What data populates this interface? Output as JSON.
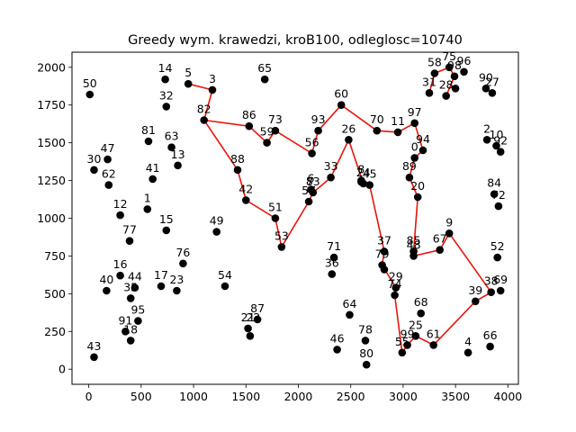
{
  "chart_data": {
    "type": "scatter",
    "title": "Greedy wym. krawedzi, kroB100, odleglosc=10740",
    "xlabel": "",
    "ylabel": "",
    "xlim": [
      -160,
      4100
    ],
    "ylim": [
      -100,
      2100
    ],
    "xticks": [
      0,
      500,
      1000,
      1500,
      2000,
      2500,
      3000,
      3500,
      4000
    ],
    "yticks": [
      0,
      250,
      500,
      750,
      1000,
      1250,
      1500,
      1750,
      2000
    ],
    "grid": false,
    "colors": {
      "points": "#000000",
      "route": "#e8140c"
    },
    "points": [
      {
        "id": "0",
        "x": 3110,
        "y": 1400
      },
      {
        "id": "1",
        "x": 560,
        "y": 1060
      },
      {
        "id": "2",
        "x": 3800,
        "y": 1520
      },
      {
        "id": "3",
        "x": 1180,
        "y": 1850
      },
      {
        "id": "4",
        "x": 3620,
        "y": 110
      },
      {
        "id": "5",
        "x": 950,
        "y": 1890
      },
      {
        "id": "6",
        "x": 2120,
        "y": 1190
      },
      {
        "id": "8",
        "x": 2600,
        "y": 1250
      },
      {
        "id": "9",
        "x": 3440,
        "y": 900
      },
      {
        "id": "10",
        "x": 3890,
        "y": 1480
      },
      {
        "id": "11",
        "x": 2950,
        "y": 1570
      },
      {
        "id": "12",
        "x": 300,
        "y": 1020
      },
      {
        "id": "13",
        "x": 850,
        "y": 1350
      },
      {
        "id": "14",
        "x": 730,
        "y": 1920
      },
      {
        "id": "15",
        "x": 740,
        "y": 920
      },
      {
        "id": "16",
        "x": 300,
        "y": 620
      },
      {
        "id": "17",
        "x": 690,
        "y": 550
      },
      {
        "id": "18",
        "x": 400,
        "y": 190
      },
      {
        "id": "20",
        "x": 3140,
        "y": 1140
      },
      {
        "id": "21",
        "x": 1520,
        "y": 270
      },
      {
        "id": "23",
        "x": 840,
        "y": 520
      },
      {
        "id": "24",
        "x": 2620,
        "y": 1230
      },
      {
        "id": "25",
        "x": 3120,
        "y": 220
      },
      {
        "id": "26",
        "x": 2480,
        "y": 1520
      },
      {
        "id": "27",
        "x": 3850,
        "y": 1830
      },
      {
        "id": "28",
        "x": 3410,
        "y": 1810
      },
      {
        "id": "29",
        "x": 2930,
        "y": 540
      },
      {
        "id": "30",
        "x": 50,
        "y": 1320
      },
      {
        "id": "31",
        "x": 3250,
        "y": 1830
      },
      {
        "id": "32",
        "x": 740,
        "y": 1740
      },
      {
        "id": "33",
        "x": 2310,
        "y": 1270
      },
      {
        "id": "35",
        "x": 400,
        "y": 470
      },
      {
        "id": "36",
        "x": 2320,
        "y": 630
      },
      {
        "id": "37",
        "x": 2820,
        "y": 780
      },
      {
        "id": "38",
        "x": 3840,
        "y": 510
      },
      {
        "id": "39",
        "x": 3690,
        "y": 450
      },
      {
        "id": "40",
        "x": 170,
        "y": 520
      },
      {
        "id": "41",
        "x": 610,
        "y": 1260
      },
      {
        "id": "42",
        "x": 1500,
        "y": 1120
      },
      {
        "id": "43",
        "x": 50,
        "y": 80
      },
      {
        "id": "44",
        "x": 440,
        "y": 540
      },
      {
        "id": "45",
        "x": 2680,
        "y": 1220
      },
      {
        "id": "46",
        "x": 2370,
        "y": 130
      },
      {
        "id": "47",
        "x": 180,
        "y": 1390
      },
      {
        "id": "48",
        "x": 3100,
        "y": 750
      },
      {
        "id": "49",
        "x": 1220,
        "y": 910
      },
      {
        "id": "50",
        "x": 10,
        "y": 1820
      },
      {
        "id": "51",
        "x": 1780,
        "y": 1000
      },
      {
        "id": "52",
        "x": 3900,
        "y": 740
      },
      {
        "id": "53",
        "x": 1840,
        "y": 810
      },
      {
        "id": "54",
        "x": 1300,
        "y": 550
      },
      {
        "id": "55",
        "x": 2990,
        "y": 110
      },
      {
        "id": "56",
        "x": 2130,
        "y": 1430
      },
      {
        "id": "57",
        "x": 2100,
        "y": 1110
      },
      {
        "id": "58",
        "x": 3300,
        "y": 1960
      },
      {
        "id": "59",
        "x": 1700,
        "y": 1500
      },
      {
        "id": "60",
        "x": 2410,
        "y": 1750
      },
      {
        "id": "61",
        "x": 3290,
        "y": 160
      },
      {
        "id": "62",
        "x": 190,
        "y": 1220
      },
      {
        "id": "63",
        "x": 790,
        "y": 1470
      },
      {
        "id": "64",
        "x": 2490,
        "y": 360
      },
      {
        "id": "65",
        "x": 1680,
        "y": 1920
      },
      {
        "id": "66",
        "x": 3830,
        "y": 150
      },
      {
        "id": "67",
        "x": 3350,
        "y": 790
      },
      {
        "id": "68",
        "x": 3170,
        "y": 370
      },
      {
        "id": "69",
        "x": 3930,
        "y": 520
      },
      {
        "id": "70",
        "x": 2750,
        "y": 1580
      },
      {
        "id": "71",
        "x": 2340,
        "y": 740
      },
      {
        "id": "72",
        "x": 3910,
        "y": 1080
      },
      {
        "id": "73",
        "x": 1780,
        "y": 1580
      },
      {
        "id": "74",
        "x": 2920,
        "y": 490
      },
      {
        "id": "75",
        "x": 3440,
        "y": 2000
      },
      {
        "id": "76",
        "x": 900,
        "y": 700
      },
      {
        "id": "77",
        "x": 390,
        "y": 850
      },
      {
        "id": "78",
        "x": 2640,
        "y": 190
      },
      {
        "id": "79",
        "x": 2800,
        "y": 690
      },
      {
        "id": "80",
        "x": 2650,
        "y": 30
      },
      {
        "id": "81",
        "x": 570,
        "y": 1510
      },
      {
        "id": "82",
        "x": 1100,
        "y": 1650
      },
      {
        "id": "83",
        "x": 2140,
        "y": 1170
      },
      {
        "id": "84",
        "x": 3870,
        "y": 1160
      },
      {
        "id": "85",
        "x": 3100,
        "y": 780
      },
      {
        "id": "86",
        "x": 1530,
        "y": 1610
      },
      {
        "id": "87",
        "x": 1610,
        "y": 330
      },
      {
        "id": "88",
        "x": 1420,
        "y": 1320
      },
      {
        "id": "89",
        "x": 3060,
        "y": 1270
      },
      {
        "id": "90",
        "x": 3790,
        "y": 1860
      },
      {
        "id": "91",
        "x": 350,
        "y": 250
      },
      {
        "id": "92",
        "x": 3930,
        "y": 1440
      },
      {
        "id": "93",
        "x": 2190,
        "y": 1580
      },
      {
        "id": "94",
        "x": 3190,
        "y": 1450
      },
      {
        "id": "95",
        "x": 470,
        "y": 320
      },
      {
        "id": "96",
        "x": 3580,
        "y": 1970
      },
      {
        "id": "97",
        "x": 3110,
        "y": 1630
      },
      {
        "id": "98",
        "x": 3490,
        "y": 1940
      },
      {
        "id": "99",
        "x": 3040,
        "y": 160
      },
      {
        "id": "",
        "x": 1540,
        "y": 220
      },
      {
        "id": "",
        "x": 2820,
        "y": 660
      },
      {
        "id": "",
        "x": 3500,
        "y": 1860
      },
      {
        "id": "",
        "x": 2600,
        "y": 1240
      }
    ],
    "labeled_only": [
      {
        "id": "22",
        "x": 1570,
        "y": 270
      },
      {
        "id": "7",
        "x": 2110,
        "y": 1170
      }
    ],
    "route": [
      [
        950,
        1890
      ],
      [
        1180,
        1850
      ],
      [
        1100,
        1650
      ],
      [
        1420,
        1320
      ],
      [
        1500,
        1120
      ],
      [
        1780,
        1000
      ],
      [
        1840,
        810
      ],
      [
        2100,
        1110
      ],
      [
        2140,
        1170
      ],
      [
        2310,
        1270
      ],
      [
        2480,
        1520
      ],
      [
        2620,
        1230
      ],
      [
        2680,
        1220
      ],
      [
        2820,
        780
      ],
      [
        2800,
        690
      ],
      [
        2930,
        540
      ],
      [
        2920,
        490
      ],
      [
        2990,
        110
      ],
      [
        3040,
        160
      ],
      [
        3120,
        220
      ],
      [
        3290,
        160
      ],
      [
        3690,
        450
      ],
      [
        3840,
        510
      ],
      [
        3440,
        900
      ],
      [
        3350,
        790
      ],
      [
        3100,
        750
      ],
      [
        3100,
        780
      ],
      [
        3140,
        1140
      ],
      [
        3060,
        1270
      ],
      [
        3110,
        1400
      ],
      [
        3190,
        1450
      ],
      [
        3110,
        1630
      ],
      [
        2950,
        1570
      ],
      [
        2750,
        1580
      ],
      [
        2410,
        1750
      ],
      [
        2190,
        1580
      ],
      [
        2130,
        1430
      ],
      [
        1780,
        1580
      ],
      [
        1700,
        1500
      ],
      [
        1530,
        1610
      ],
      [
        1100,
        1650
      ]
    ],
    "route2": [
      [
        3250,
        1830
      ],
      [
        3300,
        1960
      ],
      [
        3440,
        2000
      ],
      [
        3490,
        1940
      ],
      [
        3410,
        1810
      ]
    ],
    "route3": [
      [
        950,
        1890
      ],
      [
        1100,
        1650
      ]
    ],
    "route_top": [
      [
        2410,
        1750
      ],
      [
        2410,
        1850
      ],
      [
        2480,
        1520
      ]
    ]
  }
}
